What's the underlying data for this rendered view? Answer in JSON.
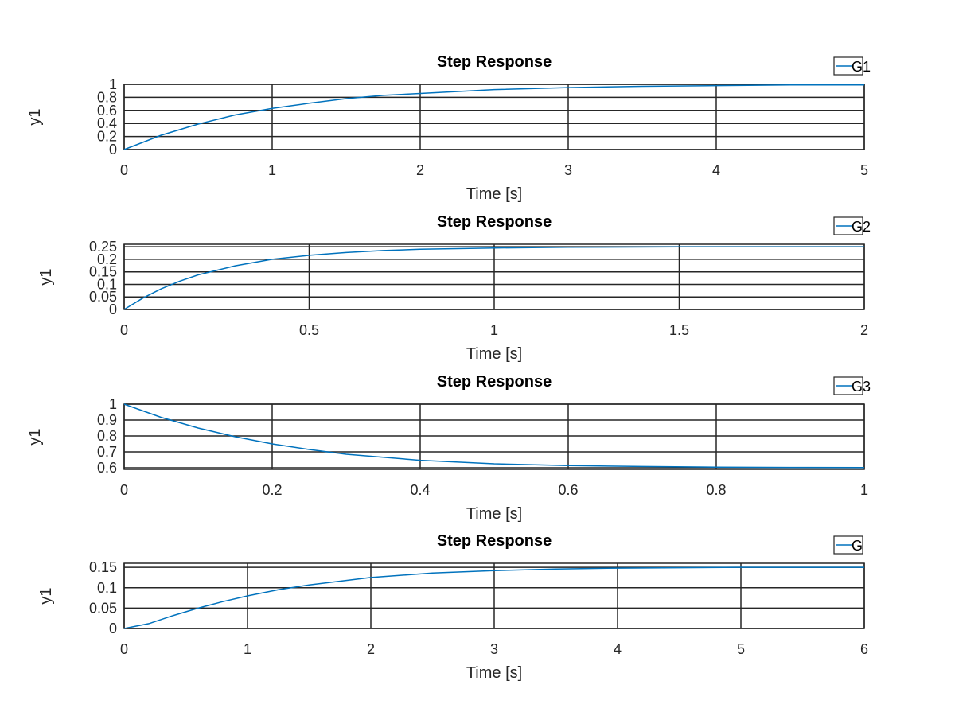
{
  "chart_data": [
    {
      "type": "line",
      "title": "Step Response",
      "xlabel": "Time [s]",
      "ylabel": "y1",
      "xlim": [
        0,
        5
      ],
      "ylim": [
        0,
        1
      ],
      "xticks": [
        0,
        1,
        2,
        3,
        4,
        5
      ],
      "xtick_labels": [
        "0",
        "1",
        "2",
        "3",
        "4",
        "5"
      ],
      "yticks": [
        0,
        0.2,
        0.4,
        0.6,
        0.8,
        1
      ],
      "ytick_labels": [
        "0",
        "0.2",
        "0.4",
        "0.6",
        "0.8",
        "1"
      ],
      "grid": true,
      "legend_position": "top-right",
      "series": [
        {
          "name": "G1",
          "color": "#0072bd",
          "x": [
            0,
            0.25,
            0.5,
            0.75,
            1,
            1.25,
            1.5,
            1.75,
            2,
            2.5,
            3,
            3.5,
            4,
            4.5,
            5
          ],
          "y": [
            0,
            0.22,
            0.39,
            0.53,
            0.63,
            0.71,
            0.78,
            0.83,
            0.86,
            0.92,
            0.95,
            0.97,
            0.98,
            0.99,
            0.99
          ]
        }
      ]
    },
    {
      "type": "line",
      "title": "Step Response",
      "xlabel": "Time [s]",
      "ylabel": "y1",
      "xlim": [
        0,
        2
      ],
      "ylim": [
        0,
        0.26
      ],
      "xticks": [
        0,
        0.5,
        1,
        1.5,
        2
      ],
      "xtick_labels": [
        "0",
        "0.5",
        "1",
        "1.5",
        "2"
      ],
      "yticks": [
        0,
        0.05,
        0.1,
        0.15,
        0.2,
        0.25
      ],
      "ytick_labels": [
        "0",
        "0.05",
        "0.1",
        "0.15",
        "0.2",
        "0.25"
      ],
      "grid": true,
      "legend_position": "top-right",
      "series": [
        {
          "name": "G2",
          "color": "#0072bd",
          "x": [
            0,
            0.05,
            0.1,
            0.15,
            0.2,
            0.3,
            0.4,
            0.5,
            0.6,
            0.7,
            0.8,
            1,
            1.2,
            1.5,
            2
          ],
          "y": [
            0,
            0.045,
            0.082,
            0.113,
            0.138,
            0.174,
            0.2,
            0.216,
            0.227,
            0.235,
            0.24,
            0.245,
            0.248,
            0.25,
            0.25
          ]
        }
      ]
    },
    {
      "type": "line",
      "title": "Step Response",
      "xlabel": "Time [s]",
      "ylabel": "y1",
      "xlim": [
        0,
        1
      ],
      "ylim": [
        0.59,
        1
      ],
      "xticks": [
        0,
        0.2,
        0.4,
        0.6,
        0.8,
        1
      ],
      "xtick_labels": [
        "0",
        "0.2",
        "0.4",
        "0.6",
        "0.8",
        "1"
      ],
      "yticks": [
        0.6,
        0.7,
        0.8,
        0.9,
        1
      ],
      "ytick_labels": [
        "0.6",
        "0.7",
        "0.8",
        "0.9",
        "1"
      ],
      "grid": true,
      "legend_position": "top-right",
      "series": [
        {
          "name": "G3",
          "color": "#0072bd",
          "x": [
            0,
            0.05,
            0.1,
            0.15,
            0.2,
            0.25,
            0.3,
            0.4,
            0.5,
            0.6,
            0.7,
            0.8,
            0.9,
            1
          ],
          "y": [
            1,
            0.917,
            0.85,
            0.795,
            0.75,
            0.715,
            0.685,
            0.647,
            0.625,
            0.614,
            0.608,
            0.604,
            0.602,
            0.601
          ]
        }
      ]
    },
    {
      "type": "line",
      "title": "Step Response",
      "xlabel": "Time [s]",
      "ylabel": "y1",
      "xlim": [
        0,
        6
      ],
      "ylim": [
        0,
        0.16
      ],
      "xticks": [
        0,
        1,
        2,
        3,
        4,
        5,
        6
      ],
      "xtick_labels": [
        "0",
        "1",
        "2",
        "3",
        "4",
        "5",
        "6"
      ],
      "yticks": [
        0,
        0.05,
        0.1,
        0.15
      ],
      "ytick_labels": [
        "0",
        "0.05",
        "0.1",
        "0.15"
      ],
      "grid": true,
      "legend_position": "top-right",
      "series": [
        {
          "name": "G",
          "color": "#0072bd",
          "x": [
            0,
            0.2,
            0.4,
            0.6,
            0.8,
            1,
            1.25,
            1.5,
            2,
            2.5,
            3,
            3.5,
            4,
            5,
            6
          ],
          "y": [
            0,
            0.012,
            0.032,
            0.05,
            0.066,
            0.08,
            0.095,
            0.107,
            0.125,
            0.136,
            0.142,
            0.146,
            0.148,
            0.15,
            0.15
          ]
        }
      ]
    }
  ]
}
